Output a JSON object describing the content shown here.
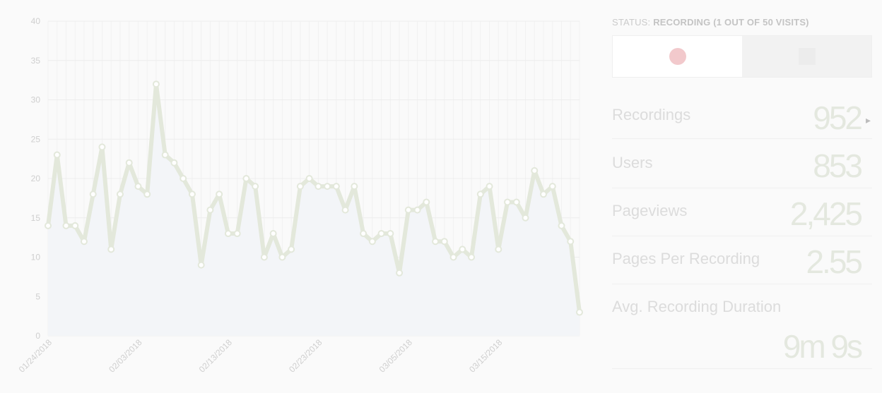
{
  "status": {
    "prefix": "STATUS: ",
    "text": "RECORDING (1 OUT OF 50 VISITS)"
  },
  "controls": {
    "record_icon": "record-dot-icon",
    "stop_icon": "stop-square-icon"
  },
  "stats": [
    {
      "label": "Recordings",
      "value": "952"
    },
    {
      "label": "Users",
      "value": "853"
    },
    {
      "label": "Pageviews",
      "value": "2,425"
    },
    {
      "label": "Pages Per Recording",
      "value": "2.55"
    },
    {
      "label": "Avg. Recording Duration",
      "value": "9m 9s"
    }
  ],
  "colors": {
    "line": "#e3e8db",
    "area": "#f3f5f8",
    "record": "#f2c9cc"
  },
  "chart_data": {
    "type": "area",
    "ylim": [
      0,
      40
    ],
    "yticks": [
      0,
      5,
      10,
      15,
      20,
      25,
      30,
      35,
      40
    ],
    "xtick_labels": [
      "01/24/2018",
      "02/03/2018",
      "02/13/2018",
      "02/23/2018",
      "03/05/2018",
      "03/15/2018"
    ],
    "grid": true,
    "series": [
      {
        "values": [
          14,
          23,
          14,
          14,
          12,
          18,
          24,
          11,
          18,
          22,
          19,
          18,
          32,
          23,
          22,
          20,
          18,
          9,
          16,
          18,
          13,
          13,
          20,
          19,
          10,
          13,
          10,
          11,
          19,
          20,
          19,
          19,
          19,
          16,
          19,
          13,
          12,
          13,
          13,
          8,
          16,
          16,
          17,
          12,
          12,
          10,
          11,
          10,
          18,
          19,
          11,
          17,
          17,
          15,
          21,
          18,
          19,
          14,
          12,
          3
        ]
      }
    ]
  }
}
